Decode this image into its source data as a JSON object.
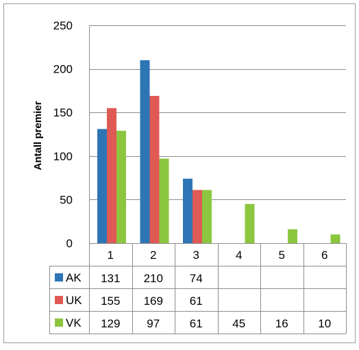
{
  "chart_data": {
    "type": "bar",
    "ylabel": "Antall premier",
    "ylim": [
      0,
      250
    ],
    "yticks": [
      0,
      50,
      100,
      150,
      200,
      250
    ],
    "categories": [
      "1",
      "2",
      "3",
      "4",
      "5",
      "6"
    ],
    "grid": "horizontal",
    "legend": "data-table",
    "series": [
      {
        "name": "AK",
        "color": "#2e75b6",
        "values": [
          131,
          210,
          74,
          null,
          null,
          null
        ]
      },
      {
        "name": "UK",
        "color": "#e05a55",
        "values": [
          155,
          169,
          61,
          null,
          null,
          null
        ]
      },
      {
        "name": "VK",
        "color": "#8cc63f",
        "values": [
          129,
          97,
          61,
          45,
          16,
          10
        ]
      }
    ]
  }
}
